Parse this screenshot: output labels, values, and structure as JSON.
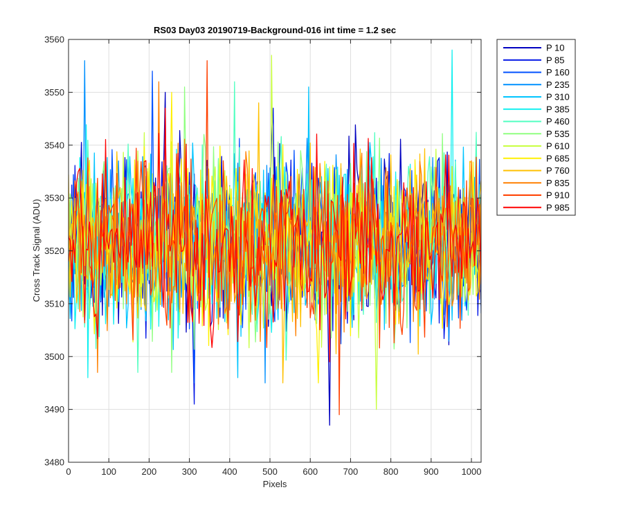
{
  "chart_data": {
    "type": "line",
    "title": "RS03 Day03 20190719-Background-016 int time = 1.2 sec",
    "xlabel": "Pixels",
    "ylabel": "Cross Track Signal (ADU)",
    "xlim": [
      0,
      1024
    ],
    "ylim": [
      3480,
      3560
    ],
    "xticks": [
      0,
      100,
      200,
      300,
      400,
      500,
      600,
      700,
      800,
      900,
      1000
    ],
    "yticks": [
      3480,
      3490,
      3500,
      3510,
      3520,
      3530,
      3540,
      3550,
      3560
    ],
    "grid": true,
    "legend_position": "outside-top-right",
    "series": [
      {
        "name": "P 10",
        "color": "#0000C0",
        "mean": 3522,
        "min": 3487,
        "max": 3550
      },
      {
        "name": "P 85",
        "color": "#0014E6",
        "mean": 3522,
        "min": 3491,
        "max": 3547
      },
      {
        "name": "P 160",
        "color": "#0050FF",
        "mean": 3522,
        "min": 3495,
        "max": 3554
      },
      {
        "name": "P 235",
        "color": "#0090FF",
        "mean": 3522,
        "min": 3495,
        "max": 3556
      },
      {
        "name": "P 310",
        "color": "#00C4FF",
        "mean": 3522,
        "min": 3496,
        "max": 3551
      },
      {
        "name": "P 385",
        "color": "#10F0F0",
        "mean": 3522,
        "min": 3496,
        "max": 3558
      },
      {
        "name": "P 460",
        "color": "#50FFC0",
        "mean": 3522,
        "min": 3497,
        "max": 3552
      },
      {
        "name": "P 535",
        "color": "#90FF80",
        "mean": 3522,
        "min": 3497,
        "max": 3551
      },
      {
        "name": "P 610",
        "color": "#C8FF40",
        "mean": 3522,
        "min": 3490,
        "max": 3557
      },
      {
        "name": "P 685",
        "color": "#FFF000",
        "mean": 3522,
        "min": 3495,
        "max": 3550
      },
      {
        "name": "P 760",
        "color": "#FFC000",
        "mean": 3522,
        "min": 3495,
        "max": 3548
      },
      {
        "name": "P 835",
        "color": "#FF8000",
        "mean": 3522,
        "min": 3497,
        "max": 3552
      },
      {
        "name": "P 910",
        "color": "#FF4000",
        "mean": 3522,
        "min": 3489,
        "max": 3556
      },
      {
        "name": "P 985",
        "color": "#FF0000",
        "mean": 3522,
        "min": 3499,
        "max": 3547
      }
    ],
    "x_step": 4,
    "seed": 19072019
  }
}
